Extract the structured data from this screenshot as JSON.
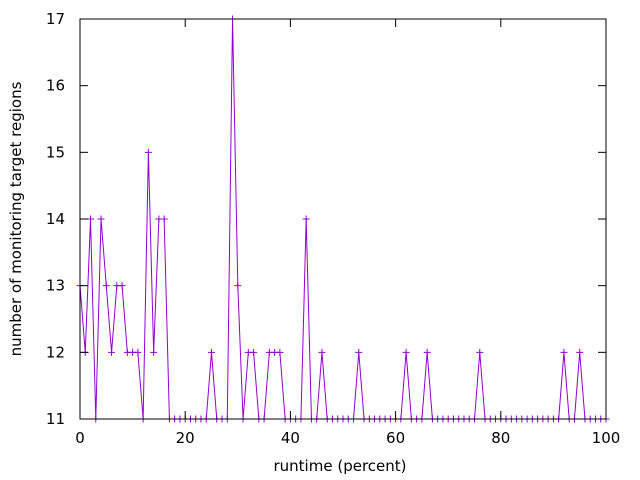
{
  "chart_data": {
    "type": "line",
    "title": "",
    "xlabel": "runtime (percent)",
    "ylabel": "number of monitoring target regions",
    "xlim": [
      0,
      100
    ],
    "ylim": [
      11,
      17
    ],
    "xticks": [
      0,
      20,
      40,
      60,
      80,
      100
    ],
    "yticks": [
      11,
      12,
      13,
      14,
      15,
      16,
      17
    ],
    "grid": false,
    "legend": "none",
    "series": [
      {
        "color": "#9400d3",
        "marker": "plus",
        "x": [
          0,
          1,
          2,
          3,
          4,
          5,
          6,
          7,
          8,
          9,
          10,
          11,
          12,
          13,
          14,
          15,
          16,
          17,
          18,
          19,
          20,
          21,
          22,
          23,
          24,
          25,
          26,
          27,
          28,
          29,
          30,
          31,
          32,
          33,
          34,
          35,
          36,
          37,
          38,
          39,
          40,
          41,
          42,
          43,
          44,
          45,
          46,
          47,
          48,
          49,
          50,
          51,
          52,
          53,
          54,
          55,
          56,
          57,
          58,
          59,
          60,
          61,
          62,
          63,
          64,
          65,
          66,
          67,
          68,
          69,
          70,
          71,
          72,
          73,
          74,
          75,
          76,
          77,
          78,
          79,
          80,
          81,
          82,
          83,
          84,
          85,
          86,
          87,
          88,
          89,
          90,
          91,
          92,
          93,
          94,
          95,
          96,
          97,
          98,
          99,
          100
        ],
        "y": [
          13,
          12,
          14,
          11,
          14,
          13,
          12,
          13,
          13,
          12,
          12,
          12,
          11,
          15,
          12,
          14,
          14,
          11,
          11,
          11,
          11,
          11,
          11,
          11,
          11,
          12,
          11,
          11,
          11,
          17,
          13,
          11,
          12,
          12,
          11,
          11,
          12,
          12,
          12,
          11,
          11,
          11,
          11,
          14,
          11,
          11,
          12,
          11,
          11,
          11,
          11,
          11,
          11,
          12,
          11,
          11,
          11,
          11,
          11,
          11,
          11,
          11,
          12,
          11,
          11,
          11,
          12,
          11,
          11,
          11,
          11,
          11,
          11,
          11,
          11,
          11,
          12,
          11,
          11,
          11,
          11,
          11,
          11,
          11,
          11,
          11,
          11,
          11,
          11,
          11,
          11,
          11,
          12,
          11,
          11,
          12,
          11,
          11,
          11,
          11,
          11
        ]
      }
    ]
  }
}
